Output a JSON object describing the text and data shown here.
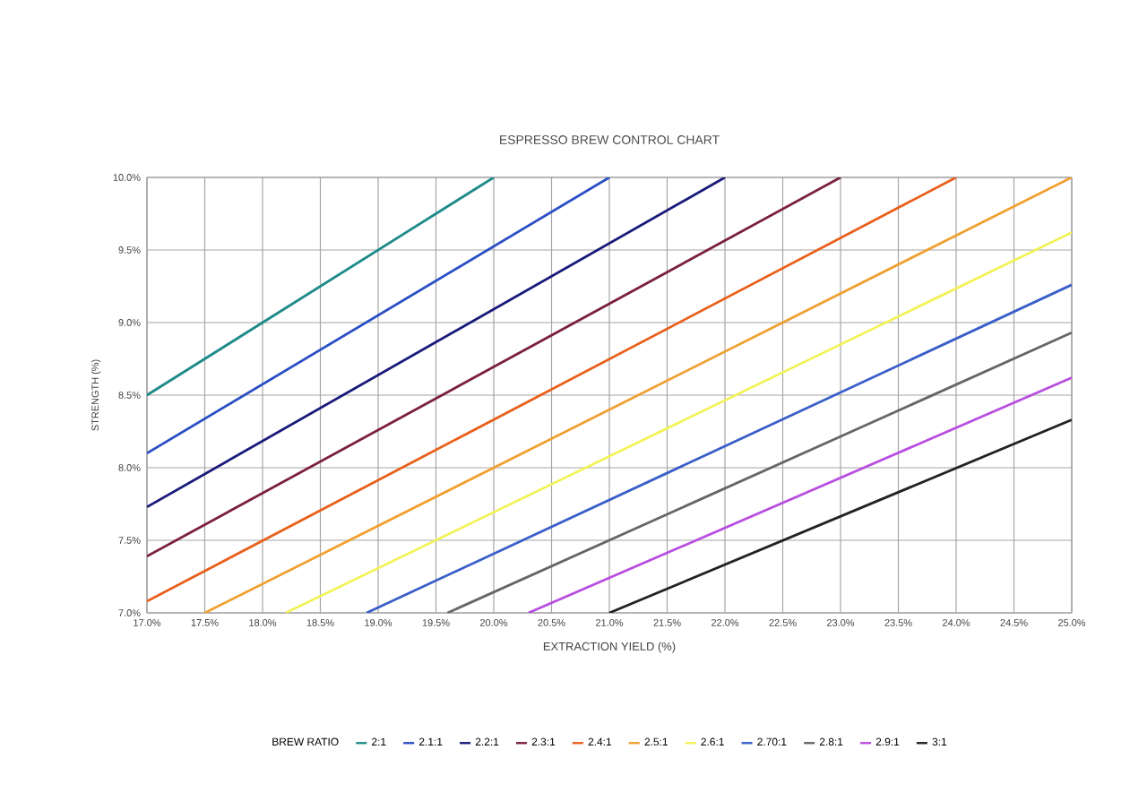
{
  "chart_data": {
    "type": "line",
    "title": "ESPRESSO BREW CONTROL CHART",
    "xlabel": "EXTRACTION YIELD (%)",
    "ylabel": "STRENGTH (%)",
    "legend_title": "BREW RATIO",
    "xlim": [
      17,
      25
    ],
    "ylim": [
      7,
      10
    ],
    "xticks": [
      {
        "value": 17,
        "label": "17.0%"
      },
      {
        "value": 17.5,
        "label": "17.5%"
      },
      {
        "value": 18,
        "label": "18.0%"
      },
      {
        "value": 18.5,
        "label": "18.5%"
      },
      {
        "value": 19,
        "label": "19.0%"
      },
      {
        "value": 19.5,
        "label": "19.5%"
      },
      {
        "value": 20,
        "label": "20.0%"
      },
      {
        "value": 20.5,
        "label": "20.5%"
      },
      {
        "value": 21,
        "label": "21.0%"
      },
      {
        "value": 21.5,
        "label": "21.5%"
      },
      {
        "value": 22,
        "label": "22.0%"
      },
      {
        "value": 22.5,
        "label": "22.5%"
      },
      {
        "value": 23,
        "label": "23.0%"
      },
      {
        "value": 23.5,
        "label": "23.5%"
      },
      {
        "value": 24,
        "label": "24.0%"
      },
      {
        "value": 24.5,
        "label": "24.5%"
      },
      {
        "value": 25,
        "label": "25.0%"
      }
    ],
    "yticks": [
      {
        "value": 7,
        "label": "7.0%"
      },
      {
        "value": 7.5,
        "label": "7.5%"
      },
      {
        "value": 8,
        "label": "8.0%"
      },
      {
        "value": 8.5,
        "label": "8.5%"
      },
      {
        "value": 9,
        "label": "9.0%"
      },
      {
        "value": 9.5,
        "label": "9.5%"
      },
      {
        "value": 10,
        "label": "10.0%"
      }
    ],
    "grid": true,
    "legend": "bottom",
    "marker": "none",
    "line_style": "solid",
    "series": [
      {
        "name": "2:1",
        "color": "#1f8a8a",
        "x": [
          17,
          20
        ],
        "values": [
          8.5,
          10
        ]
      },
      {
        "name": "2.1:1",
        "color": "#2b4fc4",
        "x": [
          17,
          21
        ],
        "values": [
          8.1,
          10
        ]
      },
      {
        "name": "2.2:1",
        "color": "#1a1a7a",
        "x": [
          17,
          22
        ],
        "values": [
          7.73,
          10
        ]
      },
      {
        "name": "2.3:1",
        "color": "#7a2040",
        "x": [
          17,
          23
        ],
        "values": [
          7.39,
          10
        ]
      },
      {
        "name": "2.4:1",
        "color": "#e8601c",
        "x": [
          17,
          24
        ],
        "values": [
          7.08,
          10
        ]
      },
      {
        "name": "2.5:1",
        "color": "#f0a030",
        "x": [
          17.5,
          25
        ],
        "values": [
          7,
          10
        ]
      },
      {
        "name": "2.6:1",
        "color": "#f2f25a",
        "x": [
          18.2,
          25
        ],
        "values": [
          7,
          9.62
        ]
      },
      {
        "name": "2.70:1",
        "color": "#3a5fc8",
        "x": [
          18.9,
          25
        ],
        "values": [
          7,
          9.26
        ]
      },
      {
        "name": "2.8:1",
        "color": "#666666",
        "x": [
          19.6,
          25
        ],
        "values": [
          7,
          8.93
        ]
      },
      {
        "name": "2.9:1",
        "color": "#b84ee0",
        "x": [
          20.3,
          25
        ],
        "values": [
          7,
          8.62
        ]
      },
      {
        "name": "3:1",
        "color": "#222222",
        "x": [
          21,
          25
        ],
        "values": [
          7,
          8.33
        ]
      }
    ]
  }
}
